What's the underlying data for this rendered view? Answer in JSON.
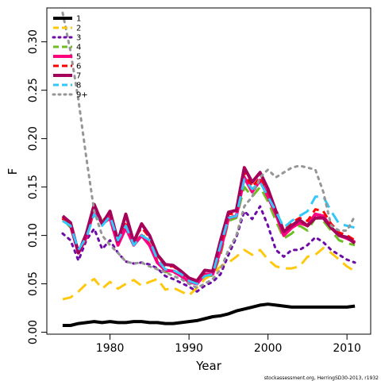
{
  "chart_data": {
    "type": "line",
    "xlabel": "Year",
    "ylabel": "F",
    "xlim": [
      1972,
      2013
    ],
    "ylim": [
      -0.002,
      0.335
    ],
    "x_ticks": [
      1980,
      1990,
      2000,
      2010
    ],
    "y_ticks": [
      0.0,
      0.05,
      0.1,
      0.15,
      0.2,
      0.25,
      0.3
    ],
    "y_tick_labels": [
      "0.00",
      "0.05",
      "0.10",
      "0.15",
      "0.20",
      "0.25",
      "0.30"
    ],
    "legend_position": "top-left",
    "credit": "stockassessment.org, HerringSD30-2013, r1932",
    "x": [
      1974,
      1975,
      1976,
      1977,
      1978,
      1979,
      1980,
      1981,
      1982,
      1983,
      1984,
      1985,
      1986,
      1987,
      1988,
      1989,
      1990,
      1991,
      1992,
      1993,
      1994,
      1995,
      1996,
      1997,
      1998,
      1999,
      2000,
      2001,
      2002,
      2003,
      2004,
      2005,
      2006,
      2007,
      2008,
      2009,
      2010,
      2011
    ],
    "series": [
      {
        "name": "1",
        "color": "#000000",
        "dash": "solid",
        "width": 4,
        "values": [
          0.007,
          0.007,
          0.009,
          0.01,
          0.011,
          0.01,
          0.011,
          0.01,
          0.01,
          0.011,
          0.011,
          0.01,
          0.01,
          0.009,
          0.009,
          0.01,
          0.011,
          0.012,
          0.014,
          0.016,
          0.017,
          0.019,
          0.022,
          0.024,
          0.026,
          0.028,
          0.029,
          0.028,
          0.027,
          0.026,
          0.026,
          0.026,
          0.026,
          0.026,
          0.026,
          0.026,
          0.026,
          0.027
        ]
      },
      {
        "name": "2",
        "color": "#FFC80F",
        "dash": "long",
        "width": 3,
        "values": [
          0.034,
          0.036,
          0.042,
          0.05,
          0.055,
          0.045,
          0.052,
          0.045,
          0.05,
          0.054,
          0.048,
          0.052,
          0.055,
          0.044,
          0.046,
          0.042,
          0.038,
          0.046,
          0.055,
          0.06,
          0.068,
          0.072,
          0.078,
          0.085,
          0.08,
          0.085,
          0.075,
          0.068,
          0.066,
          0.066,
          0.068,
          0.078,
          0.08,
          0.087,
          0.082,
          0.075,
          0.068,
          0.063
        ]
      },
      {
        "name": "3",
        "color": "#6E0AA5",
        "dash": "dotted",
        "width": 3,
        "values": [
          0.102,
          0.095,
          0.074,
          0.095,
          0.107,
          0.086,
          0.095,
          0.082,
          0.073,
          0.071,
          0.072,
          0.07,
          0.066,
          0.058,
          0.055,
          0.051,
          0.047,
          0.042,
          0.048,
          0.052,
          0.06,
          0.08,
          0.098,
          0.125,
          0.117,
          0.13,
          0.11,
          0.085,
          0.078,
          0.085,
          0.085,
          0.09,
          0.098,
          0.093,
          0.085,
          0.08,
          0.075,
          0.072
        ]
      },
      {
        "name": "4",
        "color": "#6EBE23",
        "dash": "long",
        "width": 3,
        "values": [
          0.117,
          0.108,
          0.083,
          0.098,
          0.128,
          0.115,
          0.122,
          0.092,
          0.11,
          0.092,
          0.102,
          0.092,
          0.075,
          0.062,
          0.062,
          0.058,
          0.052,
          0.05,
          0.06,
          0.058,
          0.08,
          0.115,
          0.118,
          0.15,
          0.14,
          0.15,
          0.135,
          0.115,
          0.097,
          0.102,
          0.11,
          0.105,
          0.118,
          0.115,
          0.105,
          0.095,
          0.092,
          0.09
        ]
      },
      {
        "name": "5",
        "color": "#FF0082",
        "dash": "solid",
        "width": 4,
        "values": [
          0.118,
          0.11,
          0.082,
          0.098,
          0.128,
          0.112,
          0.118,
          0.09,
          0.108,
          0.09,
          0.1,
          0.09,
          0.072,
          0.064,
          0.063,
          0.058,
          0.052,
          0.05,
          0.06,
          0.06,
          0.085,
          0.118,
          0.12,
          0.16,
          0.145,
          0.157,
          0.14,
          0.122,
          0.1,
          0.108,
          0.113,
          0.11,
          0.122,
          0.12,
          0.108,
          0.1,
          0.097,
          0.093
        ]
      },
      {
        "name": "6",
        "color": "#FF0000",
        "dash": "dashed",
        "width": 3,
        "values": [
          0.118,
          0.11,
          0.082,
          0.098,
          0.13,
          0.115,
          0.122,
          0.095,
          0.115,
          0.095,
          0.108,
          0.098,
          0.08,
          0.068,
          0.068,
          0.062,
          0.055,
          0.053,
          0.062,
          0.064,
          0.09,
          0.122,
          0.123,
          0.165,
          0.15,
          0.16,
          0.145,
          0.127,
          0.105,
          0.113,
          0.118,
          0.115,
          0.127,
          0.125,
          0.112,
          0.103,
          0.1,
          0.095
        ]
      },
      {
        "name": "7",
        "color": "#A5005A",
        "dash": "solid",
        "width": 4,
        "values": [
          0.12,
          0.113,
          0.082,
          0.102,
          0.132,
          0.112,
          0.125,
          0.094,
          0.122,
          0.093,
          0.112,
          0.1,
          0.08,
          0.07,
          0.069,
          0.063,
          0.056,
          0.053,
          0.064,
          0.063,
          0.095,
          0.124,
          0.126,
          0.17,
          0.155,
          0.165,
          0.148,
          0.125,
          0.104,
          0.11,
          0.116,
          0.11,
          0.118,
          0.118,
          0.108,
          0.1,
          0.098,
          0.092
        ]
      },
      {
        "name": "8",
        "color": "#32C8FA",
        "dash": "long",
        "width": 3,
        "values": [
          0.115,
          0.11,
          0.085,
          0.098,
          0.122,
          0.11,
          0.12,
          0.095,
          0.11,
          0.09,
          0.1,
          0.095,
          0.075,
          0.065,
          0.064,
          0.06,
          0.053,
          0.05,
          0.058,
          0.06,
          0.09,
          0.118,
          0.12,
          0.158,
          0.148,
          0.155,
          0.14,
          0.125,
          0.108,
          0.115,
          0.12,
          0.125,
          0.14,
          0.14,
          0.125,
          0.112,
          0.11,
          0.108
        ]
      },
      {
        "name": "9+",
        "color": "#969696",
        "dash": "dotted",
        "width": 3,
        "values": [
          0.33,
          0.29,
          0.24,
          0.18,
          0.125,
          0.1,
          0.09,
          0.082,
          0.073,
          0.071,
          0.072,
          0.068,
          0.065,
          0.062,
          0.058,
          0.055,
          0.05,
          0.046,
          0.05,
          0.055,
          0.065,
          0.085,
          0.1,
          0.13,
          0.14,
          0.16,
          0.168,
          0.16,
          0.165,
          0.17,
          0.172,
          0.17,
          0.168,
          0.145,
          0.11,
          0.105,
          0.105,
          0.12
        ]
      }
    ]
  }
}
